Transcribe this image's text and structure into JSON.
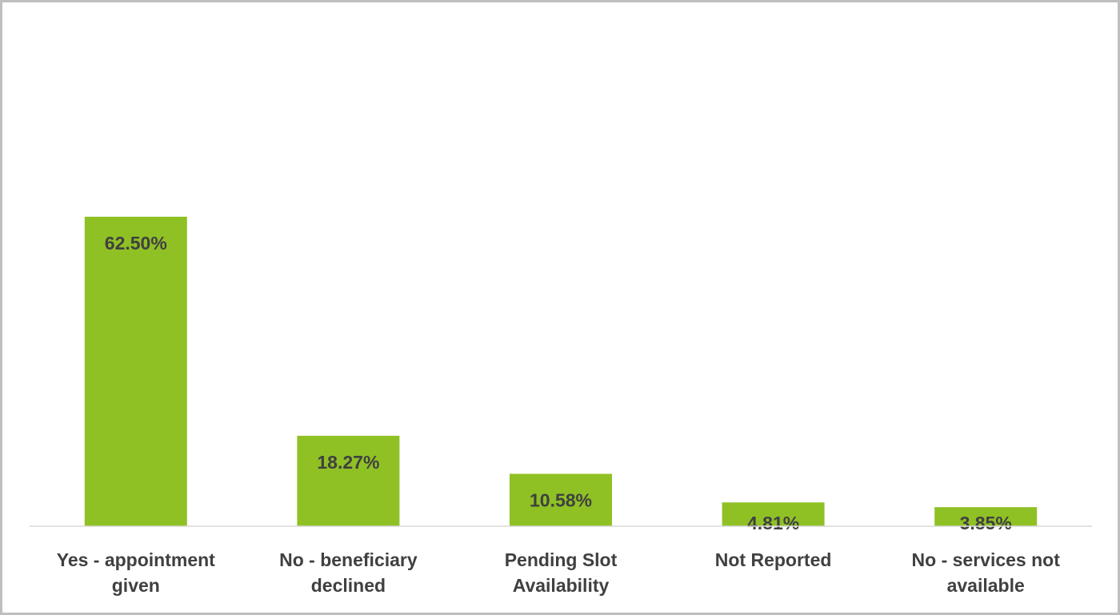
{
  "chart_data": {
    "type": "bar",
    "categories": [
      "Yes - appointment given",
      "No - beneficiary declined",
      "Pending Slot Availability",
      "Not Reported",
      "No - services not available"
    ],
    "values": [
      62.5,
      18.27,
      10.58,
      4.81,
      3.85
    ],
    "value_labels": [
      "62.50%",
      "18.27%",
      "10.58%",
      "4.81%",
      "3.85%"
    ],
    "color": "#8fc125"
  }
}
